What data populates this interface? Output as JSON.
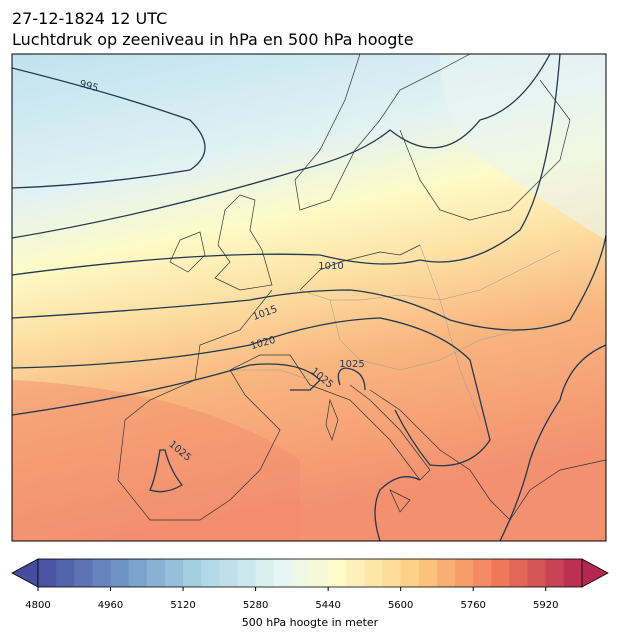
{
  "header": {
    "title": "27-12-1824 12 UTC",
    "subtitle": "Luchtdruk op zeeniveau in hPa en 500 hPa hoogte"
  },
  "map": {
    "contour_labels": [
      {
        "text": "995"
      },
      {
        "text": "1010"
      },
      {
        "text": "1015"
      },
      {
        "text": "1020"
      },
      {
        "text": "1025"
      },
      {
        "text": "1025"
      },
      {
        "text": "1025"
      }
    ]
  },
  "colorbar": {
    "lim": [
      4800,
      6000
    ],
    "step": 40,
    "ticks": [
      4800,
      4960,
      5120,
      5280,
      5440,
      5600,
      5760,
      5920
    ],
    "label": "500 hPa hoogte in meter"
  }
}
